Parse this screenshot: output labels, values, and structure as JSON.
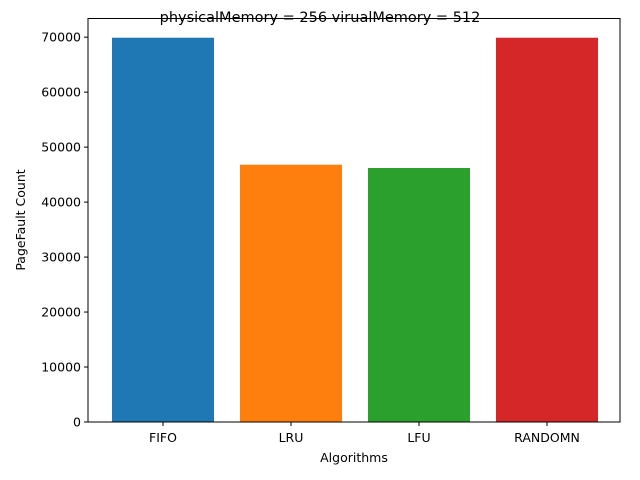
{
  "chart_data": {
    "type": "bar",
    "title": "physicalMemory = 256 virualMemory = 512",
    "xlabel": "Algorithms",
    "ylabel": "PageFault Count",
    "categories": [
      "FIFO",
      "LRU",
      "LFU",
      "RANDOMN"
    ],
    "values": [
      69900,
      46800,
      46200,
      69900
    ],
    "colors": [
      "#1f77b4",
      "#ff7f0e",
      "#2ca02c",
      "#d62728"
    ],
    "ylim": [
      0,
      73395
    ],
    "yticks": [
      0,
      10000,
      20000,
      30000,
      40000,
      50000,
      60000,
      70000
    ],
    "grid": false,
    "legend": "none"
  }
}
